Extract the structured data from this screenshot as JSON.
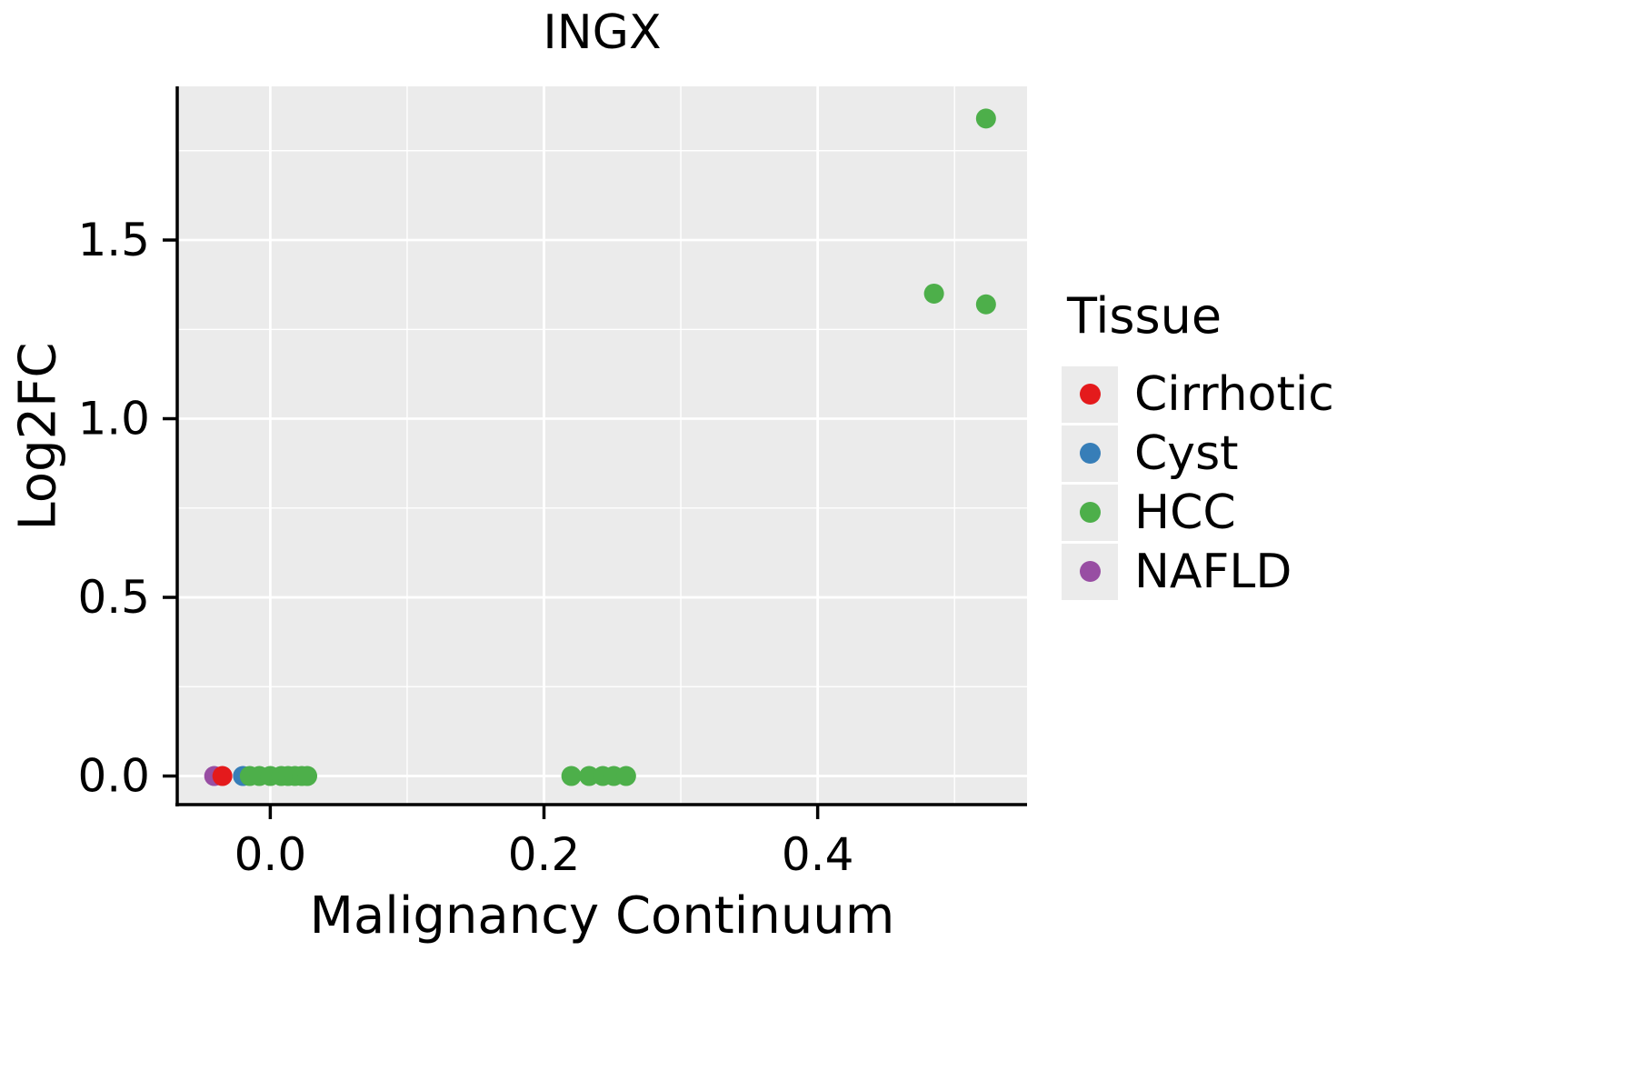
{
  "title": "INGX",
  "xlabel": "Malignancy Continuum",
  "ylabel": "Log2FC",
  "colors": {
    "panel_background": "#ebebeb",
    "grid_major": "#ffffff",
    "grid_minor": "#ffffff",
    "axis": "#000000",
    "text": "#000000"
  },
  "legend": {
    "title": "Tissue",
    "items": [
      {
        "label": "Cirrhotic",
        "color": "#e41a1c"
      },
      {
        "label": "Cyst",
        "color": "#377eb8"
      },
      {
        "label": "HCC",
        "color": "#4daf4a"
      },
      {
        "label": "NAFLD",
        "color": "#984ea3"
      }
    ]
  },
  "chart_data": {
    "type": "scatter",
    "title": "INGX",
    "xlabel": "Malignancy Continuum",
    "ylabel": "Log2FC",
    "xlim": [
      -0.068,
      0.553
    ],
    "ylim": [
      -0.08,
      1.93
    ],
    "xticks": [
      0.0,
      0.2,
      0.4
    ],
    "yticks": [
      0.0,
      0.5,
      1.0,
      1.5
    ],
    "xticks_minor": [
      0.1,
      0.3,
      0.5
    ],
    "yticks_minor": [
      0.25,
      0.75,
      1.25,
      1.75
    ],
    "grid": true,
    "legend_position": "right",
    "point_radius": 11,
    "series": [
      {
        "name": "NAFLD",
        "color": "#984ea3",
        "points": [
          [
            -0.041,
            0.0
          ]
        ]
      },
      {
        "name": "Cirrhotic",
        "color": "#e41a1c",
        "points": [
          [
            -0.035,
            0.0
          ]
        ]
      },
      {
        "name": "Cyst",
        "color": "#377eb8",
        "points": [
          [
            -0.02,
            0.0
          ]
        ]
      },
      {
        "name": "HCC",
        "color": "#4daf4a",
        "points": [
          [
            -0.015,
            0.0
          ],
          [
            -0.008,
            0.0
          ],
          [
            0.0,
            0.0
          ],
          [
            0.008,
            0.0
          ],
          [
            0.013,
            0.0
          ],
          [
            0.018,
            0.0
          ],
          [
            0.023,
            0.0
          ],
          [
            0.027,
            0.0
          ],
          [
            0.22,
            0.0
          ],
          [
            0.233,
            0.0
          ],
          [
            0.243,
            0.0
          ],
          [
            0.251,
            0.0
          ],
          [
            0.26,
            0.0
          ],
          [
            0.485,
            1.35
          ],
          [
            0.523,
            1.32
          ],
          [
            0.523,
            1.84
          ]
        ]
      }
    ]
  }
}
